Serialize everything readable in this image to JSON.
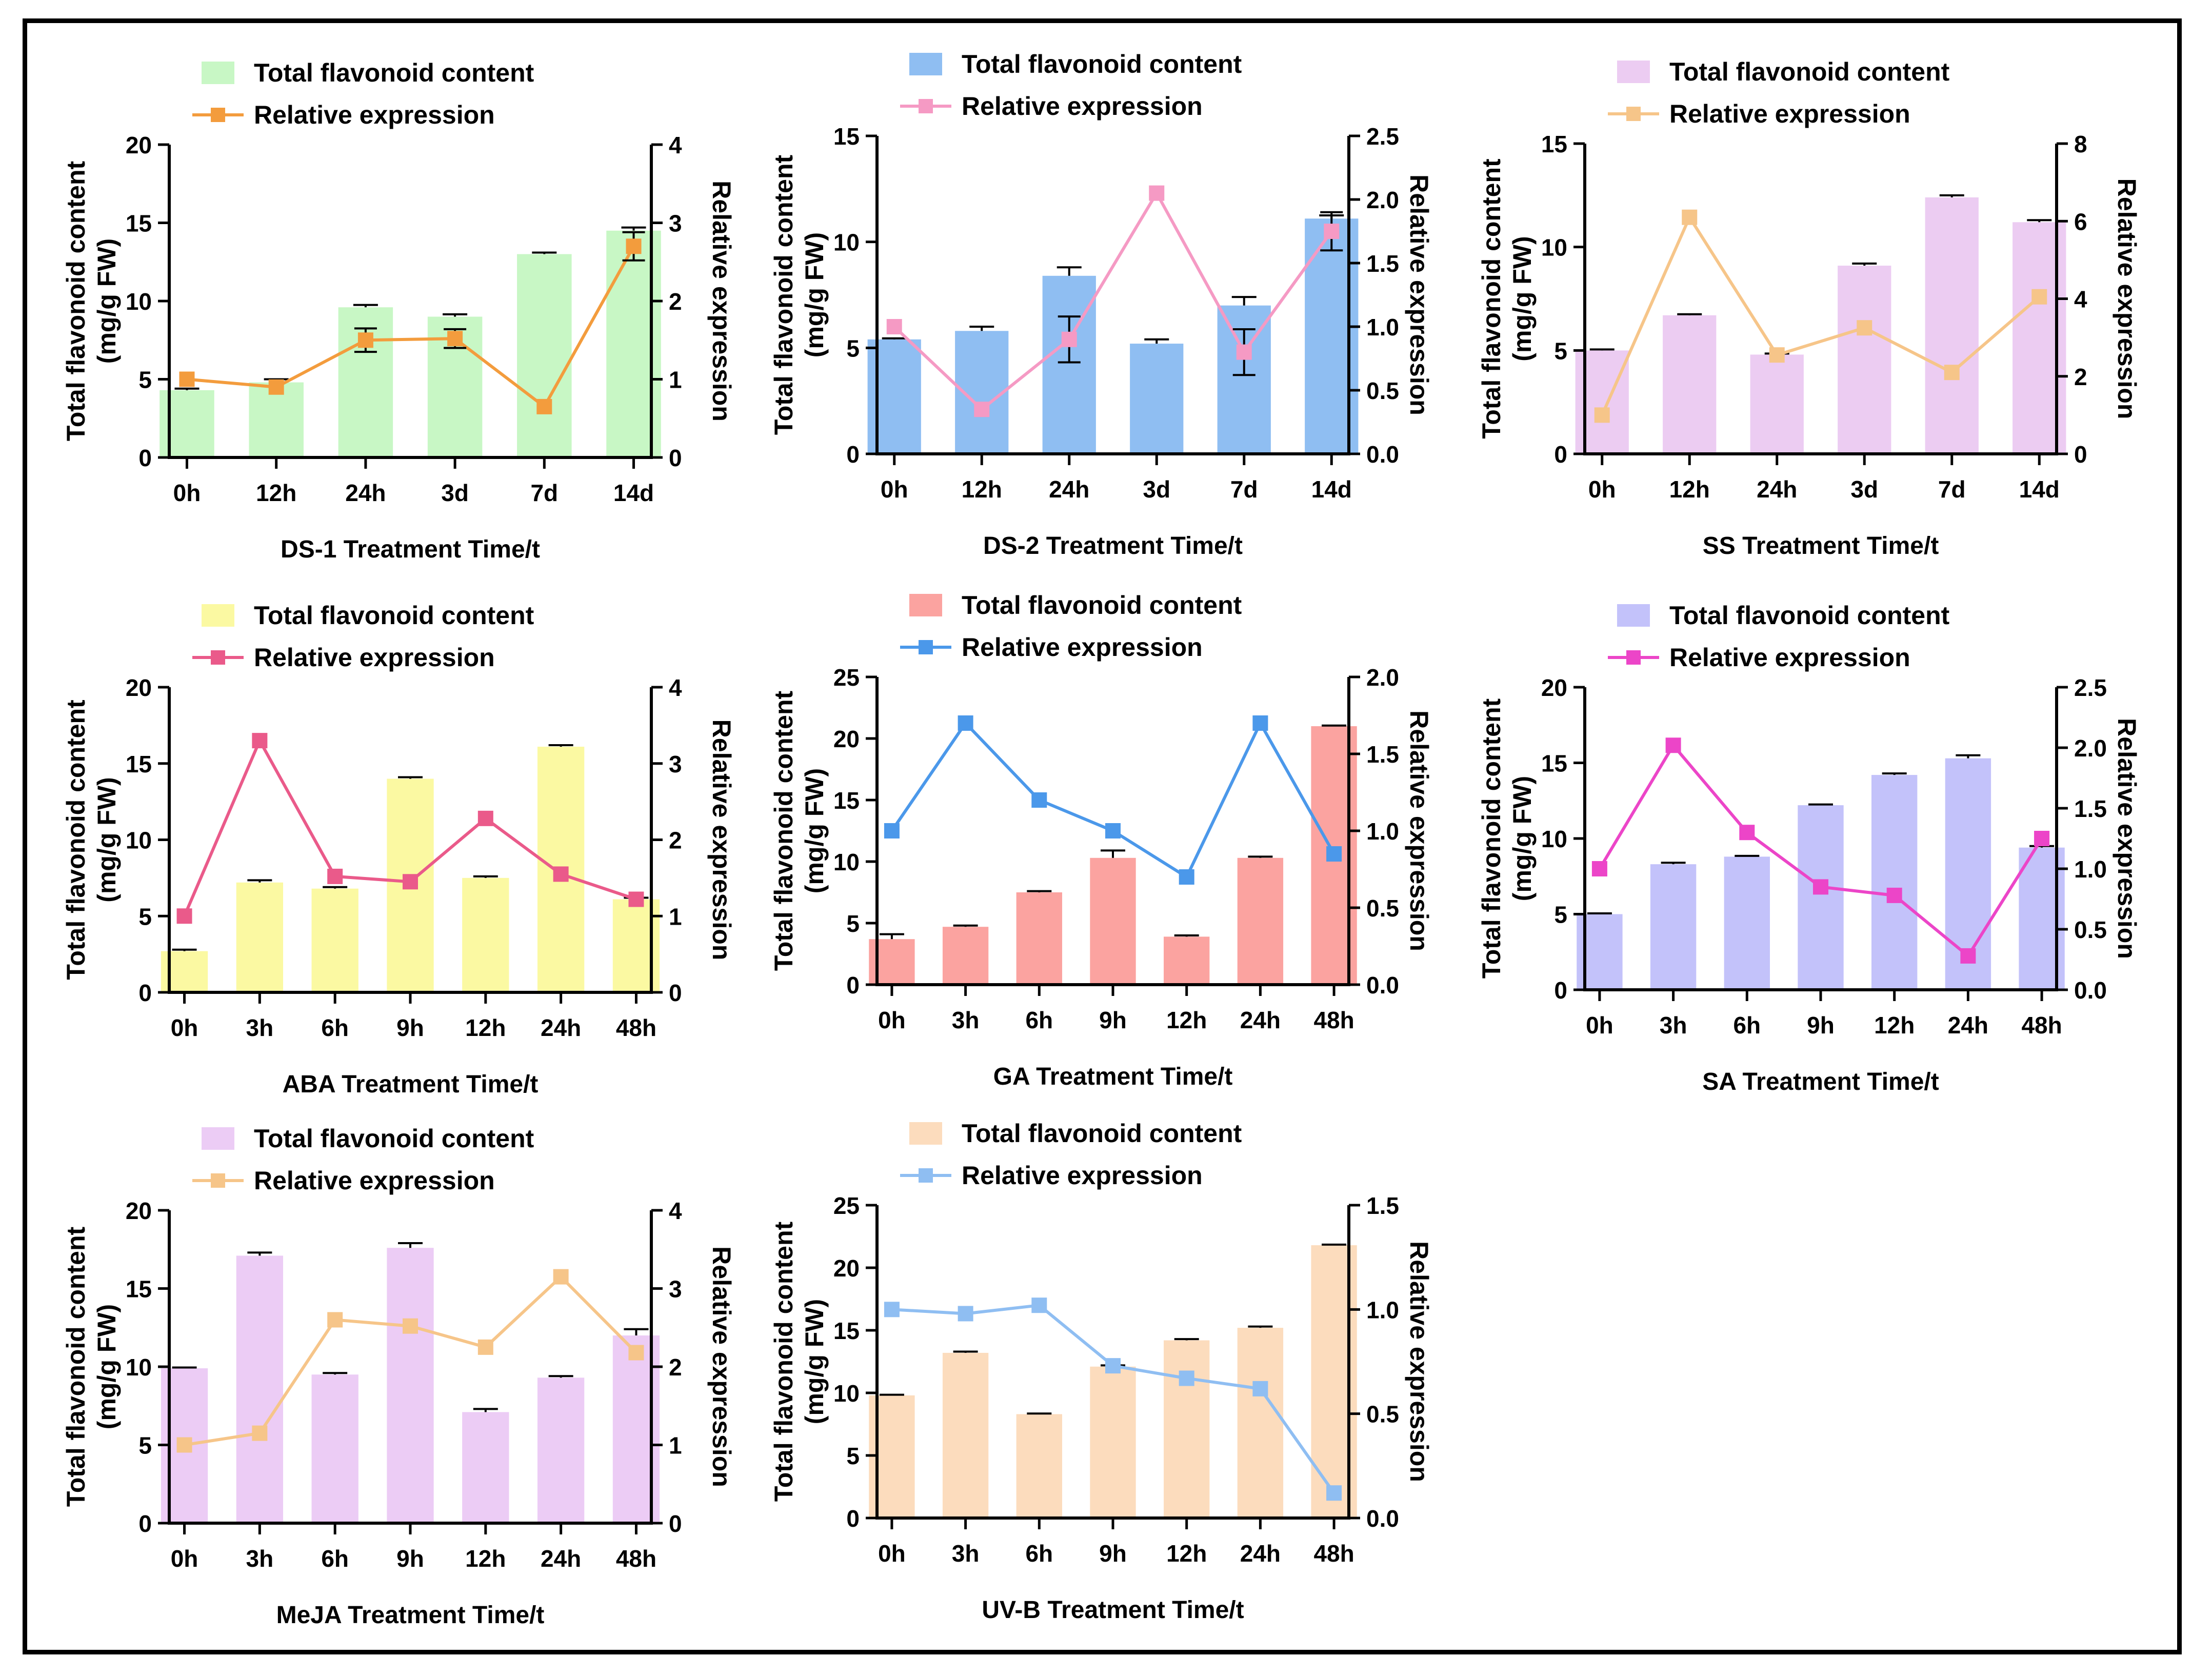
{
  "legend": {
    "bar_label": "Total flavonoid content",
    "line_label": "Relative expression"
  },
  "y_left_label_line1": "Total flavonoid content",
  "y_left_label_line2": "(mg/g FW)",
  "y_right_label": "Relative expression",
  "chart_data": [
    {
      "type": "bar+line",
      "xlabel": "DS-1 Treatment Time/t",
      "categories": [
        "0h",
        "12h",
        "24h",
        "3d",
        "7d",
        "14d"
      ],
      "series": [
        {
          "name": "Total flavonoid content",
          "axis": "left",
          "values": [
            4.3,
            4.8,
            9.6,
            9.0,
            13.0,
            14.5
          ],
          "errors": [
            0.1,
            0.2,
            0.15,
            0.15,
            0.1,
            0.2
          ]
        },
        {
          "name": "Relative expression",
          "axis": "right",
          "values": [
            1.0,
            0.9,
            1.5,
            1.52,
            0.65,
            2.7
          ],
          "errors": [
            0,
            0,
            0.15,
            0.12,
            0,
            0.18
          ]
        }
      ],
      "ylim_left": [
        0,
        20
      ],
      "yticks_left": [
        0,
        5,
        10,
        15,
        20
      ],
      "ylim_right": [
        0,
        4
      ],
      "yticks_right": [
        "0",
        "1",
        "2",
        "3",
        "4"
      ],
      "bar_color": "#c8f7c5",
      "line_color": "#f39c3d"
    },
    {
      "type": "bar+line",
      "xlabel": "DS-2 Treatment Time/t",
      "categories": [
        "0h",
        "12h",
        "24h",
        "3d",
        "7d",
        "14d"
      ],
      "series": [
        {
          "name": "Total flavonoid content",
          "axis": "left",
          "values": [
            5.4,
            5.8,
            8.4,
            5.2,
            7.0,
            11.1
          ],
          "errors": [
            0.05,
            0.2,
            0.4,
            0.2,
            0.4,
            0.15
          ]
        },
        {
          "name": "Relative expression",
          "axis": "right",
          "values": [
            1.0,
            0.35,
            0.9,
            2.05,
            0.8,
            1.75
          ],
          "errors": [
            0,
            0,
            0.18,
            0,
            0.18,
            0.15
          ]
        }
      ],
      "ylim_left": [
        0,
        15
      ],
      "yticks_left": [
        0,
        5,
        10,
        15
      ],
      "ylim_right": [
        0,
        2.5
      ],
      "yticks_right": [
        "0.0",
        "0.5",
        "1.0",
        "1.5",
        "2.0",
        "2.5"
      ],
      "bar_color": "#8fbef2",
      "line_color": "#f59ac4"
    },
    {
      "type": "bar+line",
      "xlabel": "SS Treatment Time/t",
      "categories": [
        "0h",
        "12h",
        "24h",
        "3d",
        "7d",
        "14d"
      ],
      "series": [
        {
          "name": "Total flavonoid content",
          "axis": "left",
          "values": [
            5.0,
            6.7,
            4.8,
            9.1,
            12.4,
            11.2
          ],
          "errors": [
            0.05,
            0.05,
            0.05,
            0.1,
            0.1,
            0.1
          ]
        },
        {
          "name": "Relative expression",
          "axis": "right",
          "values": [
            1.0,
            6.1,
            2.55,
            3.25,
            2.1,
            4.05
          ],
          "errors": [
            0,
            0,
            0,
            0,
            0,
            0
          ]
        }
      ],
      "ylim_left": [
        0,
        15
      ],
      "yticks_left": [
        0,
        5,
        10,
        15
      ],
      "ylim_right": [
        0,
        8
      ],
      "yticks_right": [
        "0",
        "2",
        "4",
        "6",
        "8"
      ],
      "bar_color": "#ecccf2",
      "line_color": "#f6c589"
    },
    {
      "type": "bar+line",
      "xlabel": "ABA Treatment Time/t",
      "categories": [
        "0h",
        "3h",
        "6h",
        "9h",
        "12h",
        "24h",
        "48h"
      ],
      "series": [
        {
          "name": "Total flavonoid content",
          "axis": "left",
          "values": [
            2.7,
            7.2,
            6.8,
            14.0,
            7.5,
            16.1,
            6.1
          ],
          "errors": [
            0.1,
            0.15,
            0.1,
            0.1,
            0.1,
            0.1,
            0.1
          ]
        },
        {
          "name": "Relative expression",
          "axis": "right",
          "values": [
            1.0,
            3.3,
            1.52,
            1.45,
            2.28,
            1.55,
            1.22
          ],
          "errors": [
            0,
            0,
            0,
            0,
            0,
            0,
            0
          ]
        }
      ],
      "ylim_left": [
        0,
        20
      ],
      "yticks_left": [
        0,
        5,
        10,
        15,
        20
      ],
      "ylim_right": [
        0,
        4
      ],
      "yticks_right": [
        "0",
        "1",
        "2",
        "3",
        "4"
      ],
      "bar_color": "#fbf9a2",
      "line_color": "#ea5a8a"
    },
    {
      "type": "bar+line",
      "xlabel": "GA Treatment Time/t",
      "categories": [
        "0h",
        "3h",
        "6h",
        "9h",
        "12h",
        "24h",
        "48h"
      ],
      "series": [
        {
          "name": "Total flavonoid content",
          "axis": "left",
          "values": [
            3.7,
            4.7,
            7.5,
            10.3,
            3.9,
            10.3,
            21.0
          ],
          "errors": [
            0.4,
            0.1,
            0.1,
            0.6,
            0.1,
            0.1,
            0.05
          ]
        },
        {
          "name": "Relative expression",
          "axis": "right",
          "values": [
            1.0,
            1.7,
            1.2,
            1.0,
            0.7,
            1.7,
            0.85
          ],
          "errors": [
            0,
            0,
            0,
            0,
            0,
            0,
            0
          ]
        }
      ],
      "ylim_left": [
        0,
        25
      ],
      "yticks_left": [
        0,
        5,
        10,
        15,
        20,
        25
      ],
      "ylim_right": [
        0,
        2.0
      ],
      "yticks_right": [
        "0.0",
        "0.5",
        "1.0",
        "1.5",
        "2.0"
      ],
      "bar_color": "#fba3a0",
      "line_color": "#4b98ea"
    },
    {
      "type": "bar+line",
      "xlabel": "SA Treatment Time/t",
      "categories": [
        "0h",
        "3h",
        "6h",
        "9h",
        "12h",
        "24h",
        "48h"
      ],
      "series": [
        {
          "name": "Total flavonoid content",
          "axis": "left",
          "values": [
            5.0,
            8.3,
            8.8,
            12.2,
            14.2,
            15.3,
            9.4
          ],
          "errors": [
            0.05,
            0.1,
            0.05,
            0.05,
            0.1,
            0.2,
            0.1
          ]
        },
        {
          "name": "Relative expression",
          "axis": "right",
          "values": [
            1.0,
            2.02,
            1.3,
            0.85,
            0.78,
            0.28,
            1.25
          ],
          "errors": [
            0,
            0,
            0,
            0,
            0,
            0,
            0
          ]
        }
      ],
      "ylim_left": [
        0,
        20
      ],
      "yticks_left": [
        0,
        5,
        10,
        15,
        20
      ],
      "ylim_right": [
        0,
        2.5
      ],
      "yticks_right": [
        "0.0",
        "0.5",
        "1.0",
        "1.5",
        "2.0",
        "2.5"
      ],
      "bar_color": "#c3c2fa",
      "line_color": "#ec45c8"
    },
    {
      "type": "bar+line",
      "xlabel": "MeJA Treatment Time/t",
      "categories": [
        "0h",
        "3h",
        "6h",
        "9h",
        "12h",
        "24h",
        "48h"
      ],
      "series": [
        {
          "name": "Total flavonoid content",
          "axis": "left",
          "values": [
            9.9,
            17.1,
            9.5,
            17.6,
            7.1,
            9.3,
            12.0
          ],
          "errors": [
            0.05,
            0.2,
            0.1,
            0.3,
            0.2,
            0.1,
            0.4
          ]
        },
        {
          "name": "Relative expression",
          "axis": "right",
          "values": [
            1.0,
            1.15,
            2.6,
            2.52,
            2.25,
            3.15,
            2.18
          ],
          "errors": [
            0,
            0,
            0,
            0,
            0,
            0,
            0
          ]
        }
      ],
      "ylim_left": [
        0,
        20
      ],
      "yticks_left": [
        0,
        5,
        10,
        15,
        20
      ],
      "ylim_right": [
        0,
        4
      ],
      "yticks_right": [
        "0",
        "1",
        "2",
        "3",
        "4"
      ],
      "bar_color": "#ecccf5",
      "line_color": "#f6c589"
    },
    {
      "type": "bar+line",
      "xlabel": "UV-B Treatment Time/t",
      "categories": [
        "0h",
        "3h",
        "6h",
        "9h",
        "12h",
        "24h",
        "48h"
      ],
      "series": [
        {
          "name": "Total flavonoid content",
          "axis": "left",
          "values": [
            9.8,
            13.2,
            8.3,
            12.1,
            14.2,
            15.2,
            21.8
          ],
          "errors": [
            0.05,
            0.1,
            0.05,
            0.1,
            0.1,
            0.1,
            0.05
          ]
        },
        {
          "name": "Relative expression",
          "axis": "right",
          "values": [
            1.0,
            0.98,
            1.02,
            0.73,
            0.67,
            0.62,
            0.12
          ],
          "errors": [
            0,
            0,
            0,
            0,
            0,
            0,
            0
          ]
        }
      ],
      "ylim_left": [
        0,
        25
      ],
      "yticks_left": [
        0,
        5,
        10,
        15,
        20,
        25
      ],
      "ylim_right": [
        0,
        1.5
      ],
      "yticks_right": [
        "0.0",
        "0.5",
        "1.0",
        "1.5"
      ],
      "bar_color": "#fcdcbd",
      "line_color": "#8fbef2"
    }
  ]
}
